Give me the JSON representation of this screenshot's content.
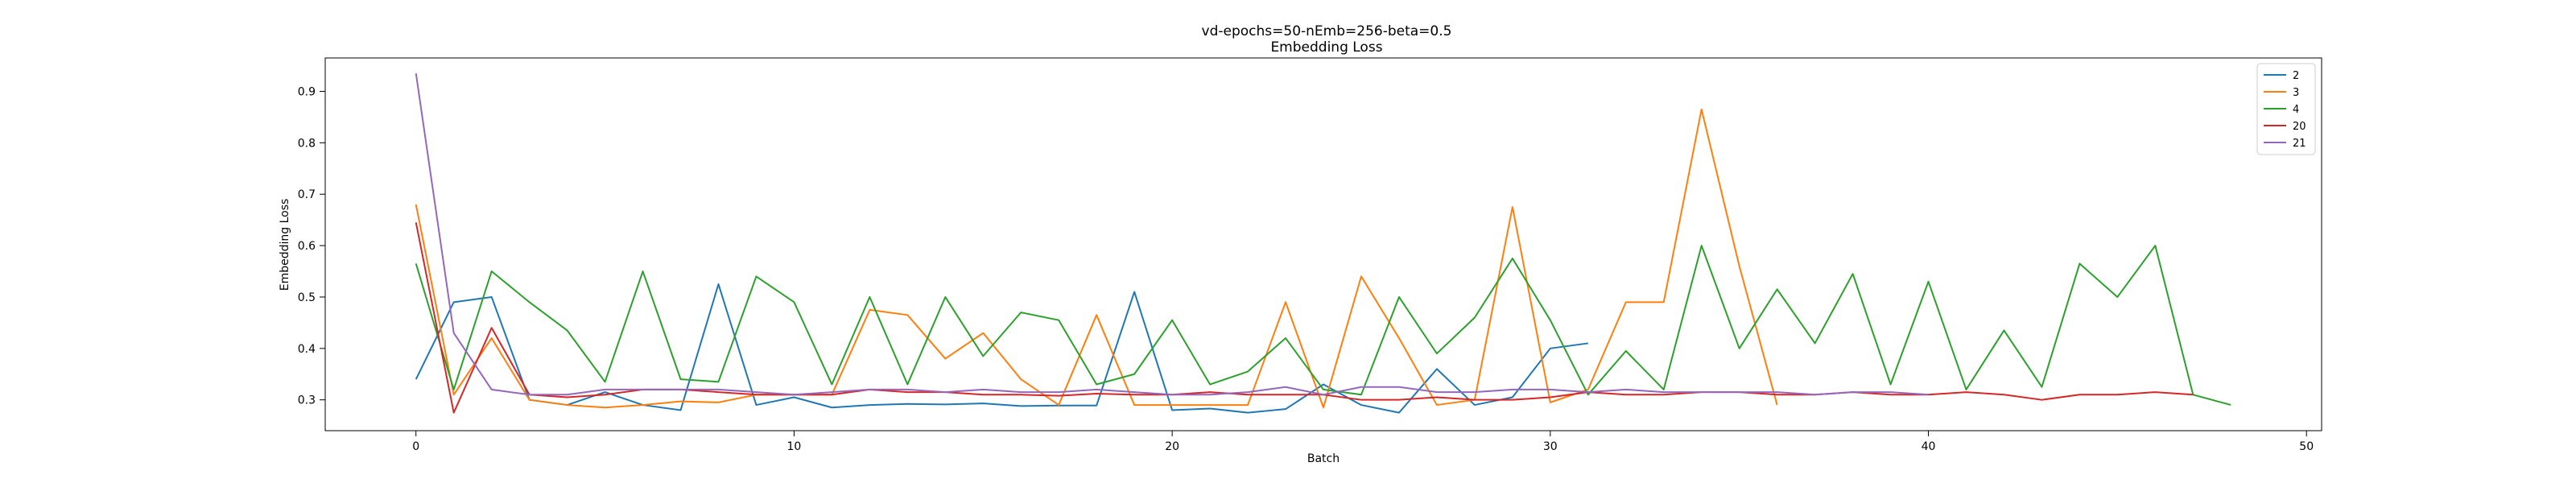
{
  "chart_data": {
    "type": "line",
    "title": "vd-epochs=50-nEmb=256-beta=0.5",
    "subtitle": "Embedding Loss",
    "xlabel": "Batch",
    "ylabel": "Embedding Loss",
    "xlim": [
      -2.4,
      50.4
    ],
    "ylim": [
      0.24,
      0.965
    ],
    "xticks": [
      0,
      10,
      20,
      30,
      40,
      50
    ],
    "yticks": [
      0.3,
      0.4,
      0.5,
      0.6,
      0.7,
      0.8,
      0.9
    ],
    "grid": false,
    "legend_position": "top-right",
    "series": [
      {
        "name": "2",
        "color": "#1f77b4",
        "values": [
          0.34,
          0.49,
          0.5,
          0.3,
          0.29,
          0.315,
          0.29,
          0.28,
          0.525,
          0.29,
          0.305,
          0.285,
          0.29,
          0.292,
          0.291,
          0.293,
          0.288,
          0.289,
          0.289,
          0.51,
          0.28,
          0.283,
          0.275,
          0.282,
          0.33,
          0.29,
          0.275,
          0.36,
          0.29,
          0.305,
          0.4,
          0.41
        ]
      },
      {
        "name": "3",
        "color": "#ff7f0e",
        "values": [
          0.68,
          0.31,
          0.42,
          0.3,
          0.29,
          0.285,
          0.29,
          0.297,
          0.295,
          0.31,
          0.31,
          0.31,
          0.475,
          0.465,
          0.38,
          0.43,
          0.34,
          0.29,
          0.465,
          0.29,
          0.29,
          0.29,
          0.29,
          0.49,
          0.285,
          0.54,
          0.42,
          0.29,
          0.3,
          0.675,
          0.295,
          0.32,
          0.49,
          0.49,
          0.865,
          0.56,
          0.29
        ]
      },
      {
        "name": "4",
        "color": "#2ca02c",
        "values": [
          0.565,
          0.32,
          0.55,
          0.49,
          0.435,
          0.335,
          0.55,
          0.34,
          0.335,
          0.54,
          0.49,
          0.33,
          0.5,
          0.33,
          0.5,
          0.385,
          0.47,
          0.455,
          0.33,
          0.35,
          0.455,
          0.33,
          0.355,
          0.42,
          0.32,
          0.31,
          0.5,
          0.39,
          0.46,
          0.575,
          0.455,
          0.31,
          0.395,
          0.32,
          0.6,
          0.4,
          0.515,
          0.41,
          0.545,
          0.33,
          0.53,
          0.32,
          0.435,
          0.325,
          0.565,
          0.5,
          0.6,
          0.31,
          0.29
        ]
      },
      {
        "name": "20",
        "color": "#d62728",
        "values": [
          0.645,
          0.275,
          0.44,
          0.31,
          0.305,
          0.31,
          0.32,
          0.32,
          0.315,
          0.31,
          0.31,
          0.31,
          0.32,
          0.315,
          0.315,
          0.31,
          0.31,
          0.308,
          0.312,
          0.31,
          0.31,
          0.315,
          0.31,
          0.31,
          0.31,
          0.3,
          0.3,
          0.305,
          0.3,
          0.3,
          0.305,
          0.315,
          0.31,
          0.31,
          0.315,
          0.315,
          0.31,
          0.31,
          0.315,
          0.31,
          0.31,
          0.315,
          0.31,
          0.3,
          0.31,
          0.31,
          0.315,
          0.31
        ]
      },
      {
        "name": "21",
        "color": "#9467bd",
        "values": [
          0.935,
          0.43,
          0.32,
          0.31,
          0.31,
          0.32,
          0.32,
          0.32,
          0.32,
          0.315,
          0.31,
          0.315,
          0.32,
          0.32,
          0.315,
          0.32,
          0.315,
          0.315,
          0.32,
          0.315,
          0.31,
          0.31,
          0.315,
          0.325,
          0.31,
          0.325,
          0.325,
          0.315,
          0.315,
          0.32,
          0.32,
          0.315,
          0.32,
          0.315,
          0.315,
          0.315,
          0.315,
          0.31,
          0.315,
          0.315,
          0.31
        ]
      }
    ]
  }
}
